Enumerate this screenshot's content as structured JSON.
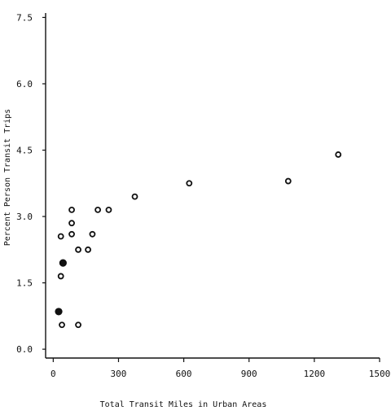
{
  "chart_data": {
    "type": "scatter",
    "title": "",
    "xlabel": "Total Transit Miles in Urban Areas",
    "ylabel": "Percent Person Transit Trips",
    "xlim": [
      -35,
      1500
    ],
    "ylim": [
      -0.2,
      7.6
    ],
    "x_ticks": [
      0,
      300,
      600,
      900,
      1200,
      1500
    ],
    "x_tick_labels": [
      "0",
      "300",
      "600",
      "900",
      "1200",
      "1500"
    ],
    "y_ticks": [
      0.0,
      1.5,
      3.0,
      4.5,
      6.0,
      7.5
    ],
    "y_tick_labels": [
      "0.0",
      "1.5",
      "3.0",
      "4.5",
      "6.0",
      "7.5"
    ],
    "grid": false,
    "series": [
      {
        "marker": "open-circle",
        "points": [
          {
            "x": 1310,
            "y": 4.4
          },
          {
            "x": 1080,
            "y": 3.8
          },
          {
            "x": 625,
            "y": 3.75
          },
          {
            "x": 375,
            "y": 3.45
          },
          {
            "x": 255,
            "y": 3.15
          },
          {
            "x": 205,
            "y": 3.15
          },
          {
            "x": 85,
            "y": 3.15
          },
          {
            "x": 85,
            "y": 2.85
          },
          {
            "x": 85,
            "y": 2.6
          },
          {
            "x": 35,
            "y": 2.55
          },
          {
            "x": 180,
            "y": 2.6
          },
          {
            "x": 160,
            "y": 2.25
          },
          {
            "x": 115,
            "y": 2.25
          },
          {
            "x": 35,
            "y": 1.65
          },
          {
            "x": 40,
            "y": 0.55
          },
          {
            "x": 115,
            "y": 0.55
          }
        ]
      },
      {
        "marker": "filled-circle",
        "points": [
          {
            "x": 45,
            "y": 1.95
          },
          {
            "x": 25,
            "y": 0.85
          }
        ]
      }
    ]
  }
}
